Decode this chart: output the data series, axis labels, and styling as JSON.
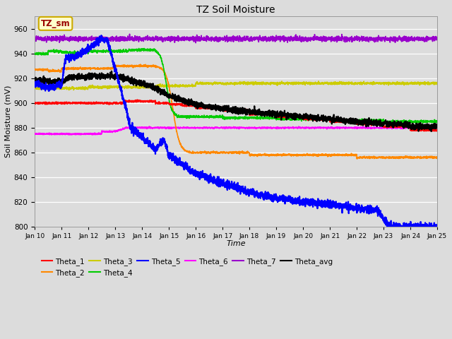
{
  "title": "TZ Soil Moisture",
  "xlabel": "Time",
  "ylabel": "Soil Moisture (mV)",
  "ylim": [
    800,
    970
  ],
  "xlim": [
    0,
    15
  ],
  "x_tick_labels": [
    "Jan 10",
    "Jan 11",
    "Jan 12",
    "Jan 13",
    "Jan 14",
    "Jan 15",
    "Jan 16",
    "Jan 17",
    "Jan 18",
    "Jan 19",
    "Jan 20",
    "Jan 21",
    "Jan 22",
    "Jan 23",
    "Jan 24",
    "Jan 25"
  ],
  "background_color": "#dcdcdc",
  "plot_bg_color": "#dcdcdc",
  "annotation_text": "TZ_sm",
  "annotation_bg": "#ffffcc",
  "annotation_border": "#ccaa00",
  "annotation_fg": "#990000",
  "series_colors": {
    "Theta_1": "#ff0000",
    "Theta_2": "#ff8800",
    "Theta_3": "#cccc00",
    "Theta_4": "#00cc00",
    "Theta_5": "#0000ff",
    "Theta_6": "#ff00ff",
    "Theta_7": "#9900cc",
    "Theta_avg": "#000000"
  }
}
